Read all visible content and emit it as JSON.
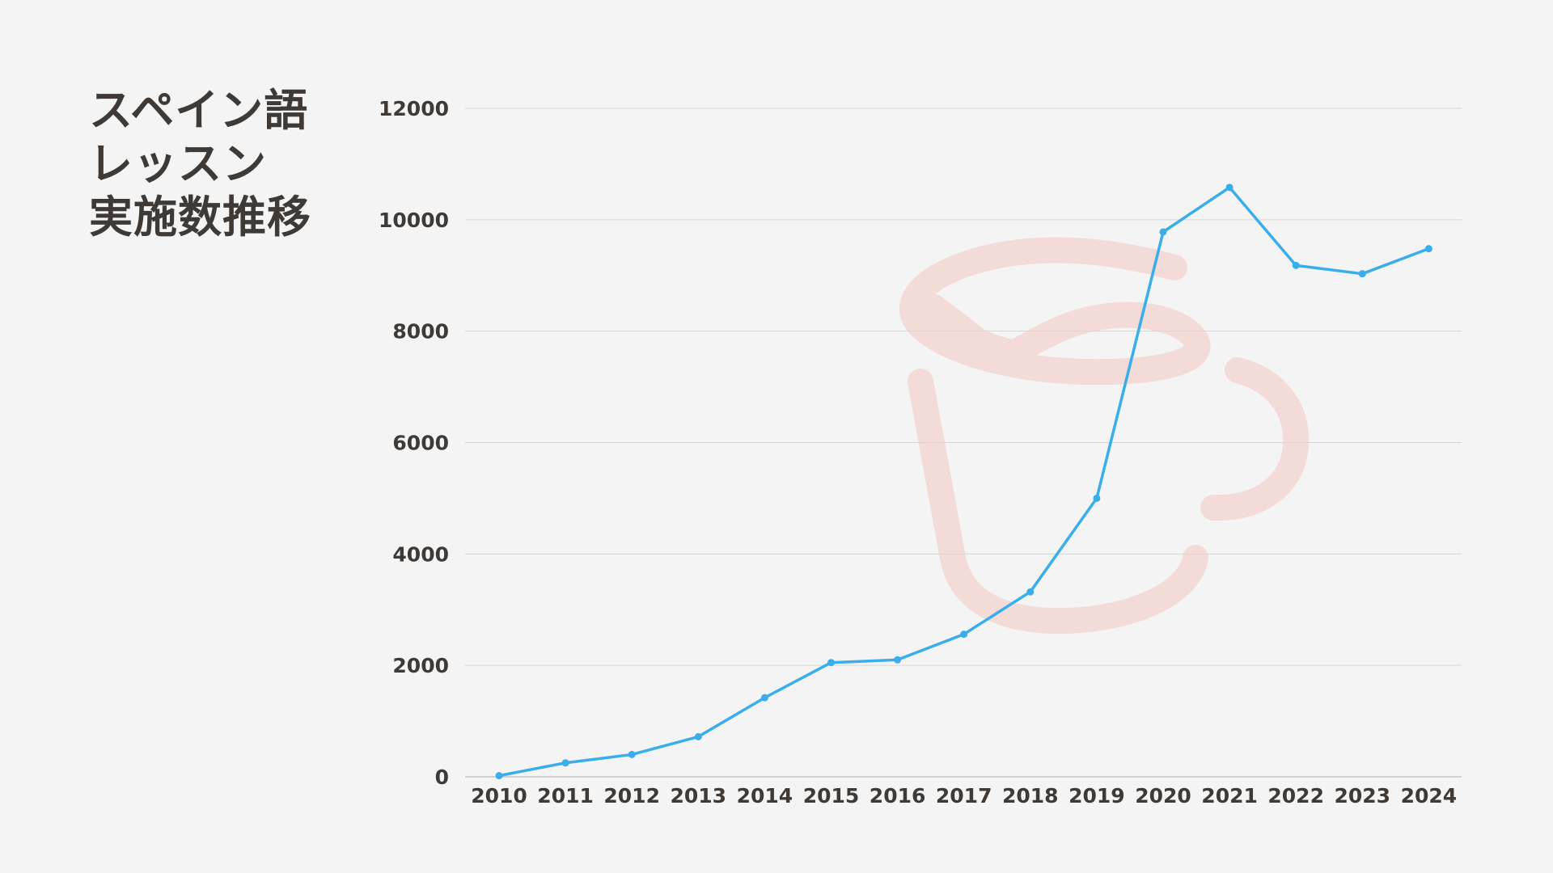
{
  "title_lines": [
    "スペイン語",
    "レッスン",
    "実施数推移"
  ],
  "colors": {
    "background": "#f4f4f4",
    "line": "#3aaeea",
    "grid": "#d6d6d6",
    "text": "#3f3a36",
    "watermark": "#f3dcd8"
  },
  "watermark_icon": "coffee-cup-icon",
  "chart_data": {
    "type": "line",
    "title": "スペイン語 レッスン 実施数推移",
    "xlabel": "",
    "ylabel": "",
    "x": [
      "2010",
      "2011",
      "2012",
      "2013",
      "2014",
      "2015",
      "2016",
      "2017",
      "2018",
      "2019",
      "2020",
      "2021",
      "2022",
      "2023",
      "2024"
    ],
    "series": [
      {
        "values": [
          20,
          250,
          400,
          720,
          1420,
          2050,
          2100,
          2560,
          3320,
          5000,
          9780,
          10580,
          9180,
          9030,
          9480
        ]
      }
    ],
    "ylim": [
      0,
      12000
    ],
    "yticks": [
      "0",
      "2000",
      "4000",
      "6000",
      "8000",
      "10000",
      "12000"
    ],
    "grid": true,
    "legend": "none"
  }
}
